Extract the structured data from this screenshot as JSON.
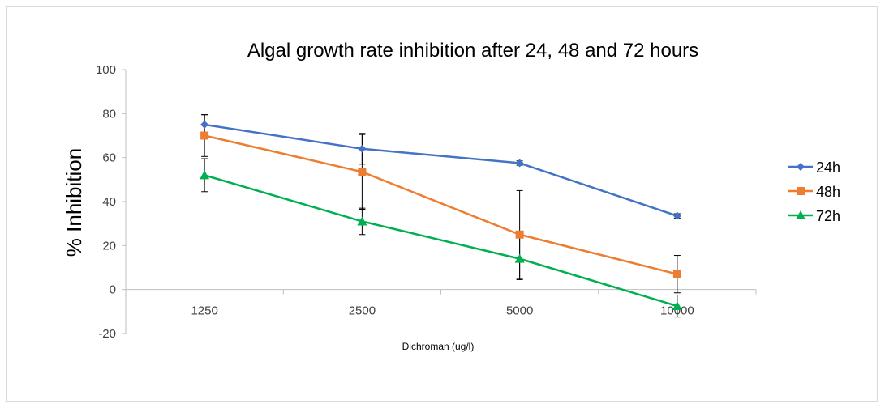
{
  "chart_data": {
    "type": "line",
    "title": "Algal growth rate inhibition after 24, 48 and 72 hours",
    "xlabel": "Dichroman (ug/l)",
    "ylabel": "% Inhibition",
    "categories": [
      "1250",
      "2500",
      "5000",
      "10000"
    ],
    "ylim": [
      -20,
      100
    ],
    "yticks": [
      -20,
      0,
      20,
      40,
      60,
      80,
      100
    ],
    "grid": false,
    "legend_position": "right",
    "series": [
      {
        "name": "24h",
        "color": "#4472C4",
        "marker": "diamond",
        "values": [
          75,
          64,
          57.5,
          33.5
        ],
        "errors": [
          4.5,
          7,
          1,
          1
        ]
      },
      {
        "name": "48h",
        "color": "#ED7D31",
        "marker": "square",
        "values": [
          70,
          53.5,
          25,
          7
        ],
        "errors": [
          9.5,
          17,
          20,
          8.5
        ]
      },
      {
        "name": "72h",
        "color": "#00B050",
        "marker": "triangle",
        "values": [
          52,
          31,
          14,
          -7.5
        ],
        "errors": [
          7.5,
          6,
          9.5,
          5
        ]
      }
    ]
  }
}
